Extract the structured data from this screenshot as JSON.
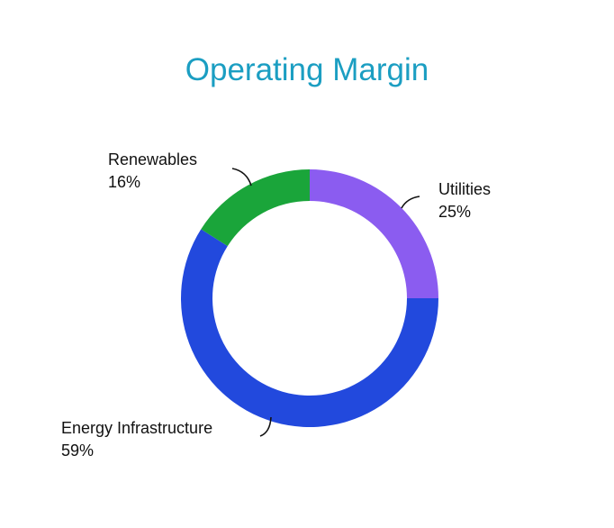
{
  "chart_data": {
    "type": "pie",
    "subtype": "donut",
    "title": "Operating Margin",
    "unit": "%",
    "slices": [
      {
        "label": "Utilities",
        "value": 25,
        "display": "25%",
        "color": "#8b5cf0"
      },
      {
        "label": "Energy Infrastructure",
        "value": 59,
        "display": "59%",
        "color": "#2249dd"
      },
      {
        "label": "Renewables",
        "value": 16,
        "display": "16%",
        "color": "#1aa53a"
      }
    ],
    "start_angle": "12 o'clock",
    "direction": "clockwise",
    "legend": "none (labels outside slices)"
  }
}
